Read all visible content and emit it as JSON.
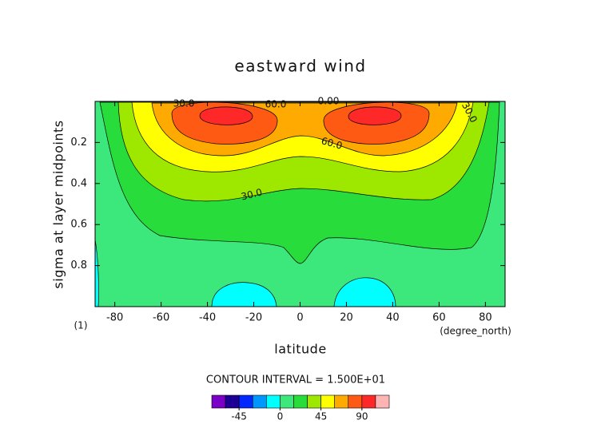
{
  "chart_data": {
    "type": "contour",
    "title": "eastward wind",
    "x_label": "latitude",
    "y_label": "sigma at layer midpoints",
    "x_units": "(degree_north)",
    "frame_note": "(1)",
    "contour_interval": "CONTOUR INTERVAL = 1.500E+01",
    "xlim": [
      -88.5,
      88.5
    ],
    "xticks": [
      -80,
      -60,
      -40,
      -20,
      0,
      20,
      40,
      60,
      80
    ],
    "ylim": [
      1.0,
      0.0
    ],
    "yticks": [
      0.2,
      0.4,
      0.6,
      0.8
    ],
    "contour_labels": [
      "30.0",
      "60.0",
      "0.00",
      "30.0",
      "60.0",
      "30.0"
    ],
    "colorbar": {
      "levels": [
        -75,
        -60,
        -45,
        -30,
        -15,
        0,
        15,
        30,
        45,
        60,
        75,
        90,
        105,
        120
      ],
      "colors": [
        "#7a00c8",
        "#1c0096",
        "#0028ff",
        "#0096ff",
        "#00ffff",
        "#3ce87c",
        "#28dc3c",
        "#9ee800",
        "#ffff00",
        "#ffaa00",
        "#ff5a14",
        "#ff2828",
        "#ffb4b4"
      ],
      "ticks": [
        -45,
        0,
        45,
        90
      ]
    }
  }
}
